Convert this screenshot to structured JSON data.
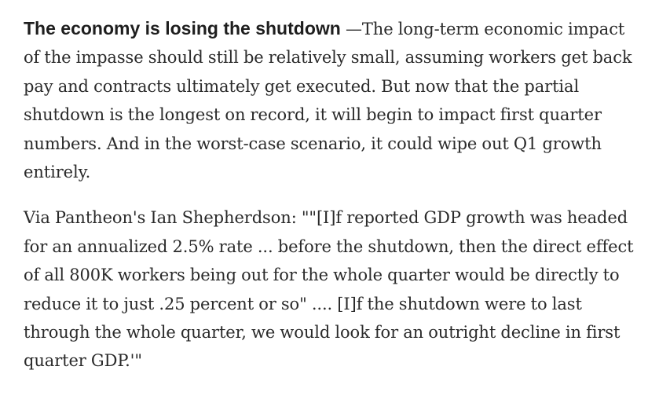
{
  "article": {
    "paragraph1": {
      "heading": "The economy is losing the shutdown",
      "body": " —The long-term economic impact of the impasse should still be relatively small, assuming workers get back pay and contracts ultimately get executed. But now that the partial shutdown is the longest on record, it will begin to impact first quarter numbers. And in the worst-case scenario, it could wipe out Q1 growth entirely."
    },
    "paragraph2": {
      "body": "Via Pantheon's Ian Shepherdson: \"\"[I]f reported GDP growth was headed for an annualized 2.5% rate ... before the shutdown, then the direct effect of all 800K workers being out for the whole quarter would be directly to reduce it to just .25 percent or so\" .... [I]f the shutdown were to last through the whole quarter, we would look for an outright decline in first quarter GDP.'\""
    }
  }
}
